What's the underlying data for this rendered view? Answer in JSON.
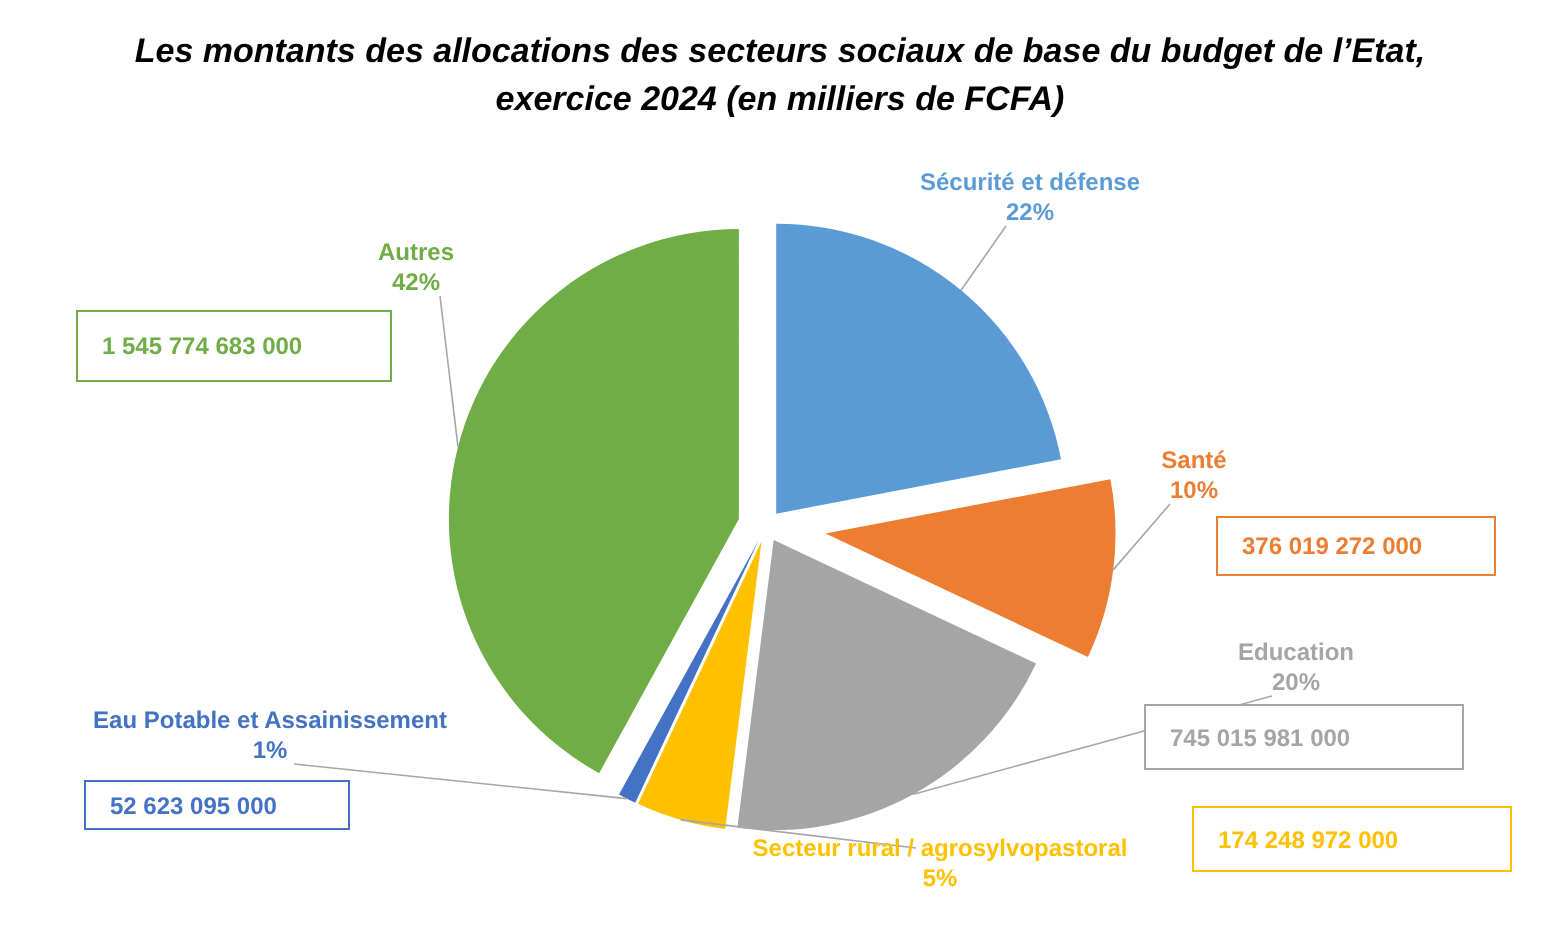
{
  "chart_data": {
    "type": "pie",
    "title": "Les montants des allocations des secteurs sociaux de base du budget de l’Etat, exercice 2024 (en milliers de FCFA)",
    "categories": [
      "Sécurité et défense",
      "Santé",
      "Education",
      "Secteur rural / agrosylvopastoral",
      "Eau Potable et Assainissement",
      "Autres"
    ],
    "values": [
      22,
      10,
      20,
      5,
      1,
      42
    ],
    "value_labels": [
      "22%",
      "10%",
      "20%",
      "5%",
      "1%",
      "42%"
    ],
    "colors": [
      "#5b9bd5",
      "#ed7d31",
      "#a5a5a5",
      "#ffc000",
      "#4472c4",
      "#70ad47"
    ],
    "annotations": [
      "376 019 272 000",
      "745 015 981 000",
      "174 248 972 000",
      "52 623 095 000",
      "1 545 774 683 000"
    ]
  }
}
